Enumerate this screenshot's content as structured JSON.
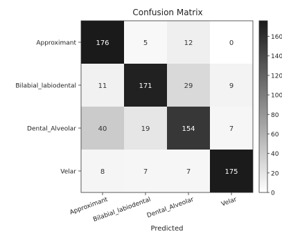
{
  "chart_data": {
    "type": "heatmap",
    "title": "Confusion Matrix",
    "xlabel": "Predicted",
    "ylabel": "",
    "row_labels": [
      "Approximant",
      "Bilabial_labiodental",
      "Dental_Alveolar",
      "Velar"
    ],
    "col_labels": [
      "Approximant",
      "Bilabial_labiodental",
      "Dental_Alveolar",
      "Velar"
    ],
    "values": [
      [
        176,
        5,
        12,
        0
      ],
      [
        11,
        171,
        29,
        9
      ],
      [
        40,
        19,
        154,
        7
      ],
      [
        8,
        7,
        7,
        175
      ]
    ],
    "colorbar": {
      "min": 0,
      "max": 176,
      "tick_labels": [
        "0",
        "20",
        "40",
        "60",
        "80",
        "100",
        "120",
        "140",
        "160"
      ],
      "tick_values": [
        0,
        20,
        40,
        60,
        80,
        100,
        120,
        140,
        160
      ],
      "colormap": "greys"
    },
    "colors": {
      "low": "#ffffff",
      "high": "#1a1a1a",
      "text_dark": "#333333",
      "text_light": "#ffffff"
    }
  }
}
